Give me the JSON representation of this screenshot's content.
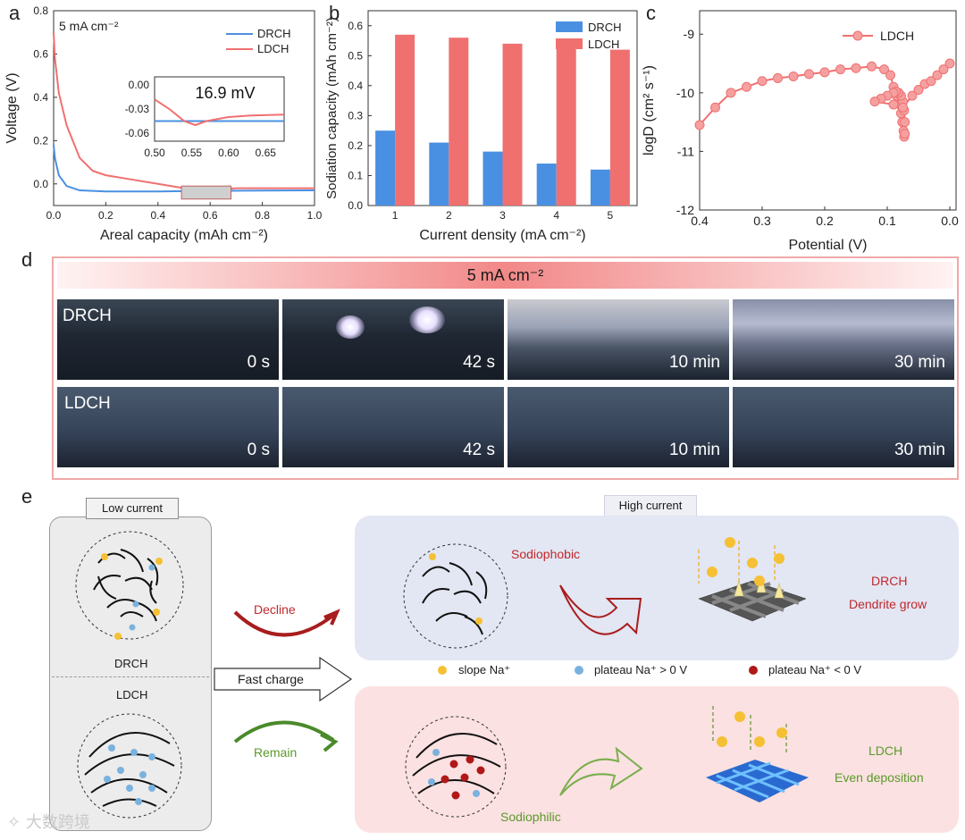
{
  "panels": {
    "a": "a",
    "b": "b",
    "c": "c",
    "d": "d",
    "e": "e"
  },
  "colors": {
    "drch": "#4a90e2",
    "ldch": "#f07070",
    "red_text": "#c0282b",
    "green_text": "#5a9a2a"
  },
  "chart_data": [
    {
      "type": "line",
      "panel": "a",
      "annotation": "5 mA cm⁻²",
      "xlabel": "Areal capacity (mAh cm⁻²)",
      "ylabel": "Voltage (V)",
      "xlim": [
        0,
        1.0
      ],
      "ylim": [
        -0.1,
        0.8
      ],
      "xticks": [
        "0.0",
        "0.2",
        "0.4",
        "0.6",
        "0.8",
        "1.0"
      ],
      "yticks": [
        "0.0",
        "0.2",
        "0.4",
        "0.6",
        "0.8"
      ],
      "legend": "top-right",
      "series": [
        {
          "name": "DRCH",
          "x": [
            0,
            0.005,
            0.02,
            0.05,
            0.1,
            0.2,
            0.4,
            0.6,
            0.8,
            1.0
          ],
          "y": [
            0.18,
            0.12,
            0.04,
            -0.01,
            -0.03,
            -0.035,
            -0.035,
            -0.032,
            -0.031,
            -0.03
          ]
        },
        {
          "name": "LDCH",
          "x": [
            0,
            0.005,
            0.02,
            0.05,
            0.1,
            0.15,
            0.2,
            0.3,
            0.4,
            0.5,
            0.55,
            0.6,
            0.7,
            0.8,
            1.0
          ],
          "y": [
            0.7,
            0.58,
            0.42,
            0.27,
            0.12,
            0.06,
            0.04,
            0.02,
            0.0,
            -0.02,
            -0.045,
            -0.03,
            -0.02,
            -0.02,
            -0.02
          ]
        }
      ],
      "inset": {
        "label": "16.9 mV",
        "xlim": [
          0.5,
          0.675
        ],
        "ylim": [
          -0.07,
          0.01
        ],
        "xticks": [
          "0.50",
          "0.55",
          "0.60",
          "0.65"
        ],
        "yticks": [
          "0.00",
          "-0.03",
          "-0.06"
        ],
        "series": [
          {
            "name": "DRCH",
            "x": [
              0.5,
              0.55,
              0.6,
              0.675
            ],
            "y": [
              -0.045,
              -0.045,
              -0.045,
              -0.045
            ]
          },
          {
            "name": "LDCH",
            "x": [
              0.5,
              0.52,
              0.54,
              0.555,
              0.57,
              0.6,
              0.63,
              0.675
            ],
            "y": [
              -0.018,
              -0.03,
              -0.045,
              -0.05,
              -0.045,
              -0.04,
              -0.038,
              -0.037
            ]
          }
        ]
      }
    },
    {
      "type": "bar",
      "panel": "b",
      "xlabel": "Current density (mA cm⁻²)",
      "ylabel": "Sodiation capacity (mAh cm⁻²)",
      "categories": [
        "1",
        "2",
        "3",
        "4",
        "5"
      ],
      "ylim": [
        0,
        0.65
      ],
      "yticks": [
        "0.0",
        "0.1",
        "0.2",
        "0.3",
        "0.4",
        "0.5",
        "0.6"
      ],
      "legend": "top-right",
      "series": [
        {
          "name": "DRCH",
          "values": [
            0.25,
            0.21,
            0.18,
            0.14,
            0.12
          ]
        },
        {
          "name": "LDCH",
          "values": [
            0.57,
            0.56,
            0.54,
            0.53,
            0.52
          ]
        }
      ]
    },
    {
      "type": "line",
      "panel": "c",
      "xlabel": "Potential (V)",
      "ylabel": "logD (cm² s⁻¹)",
      "xlim": [
        0.4,
        -0.01
      ],
      "ylim": [
        -12,
        -8.6
      ],
      "xticks": [
        "0.4",
        "0.3",
        "0.2",
        "0.1",
        "0.0"
      ],
      "yticks": [
        "-9",
        "-10",
        "-11",
        "-12"
      ],
      "legend": "top-right",
      "series": [
        {
          "name": "LDCH",
          "x": [
            0.4,
            0.375,
            0.35,
            0.325,
            0.3,
            0.275,
            0.25,
            0.225,
            0.2,
            0.175,
            0.15,
            0.125,
            0.105,
            0.095,
            0.09,
            0.085,
            0.08,
            0.078,
            0.076,
            0.074,
            0.073,
            0.072,
            0.072,
            0.073,
            0.075,
            0.078,
            0.082,
            0.086,
            0.09,
            0.1,
            0.11,
            0.12,
            0.09,
            0.075,
            0.06,
            0.05,
            0.04,
            0.03,
            0.02,
            0.01,
            0.0
          ],
          "y": [
            -10.55,
            -10.25,
            -10.0,
            -9.9,
            -9.8,
            -9.75,
            -9.72,
            -9.68,
            -9.65,
            -9.6,
            -9.58,
            -9.55,
            -9.6,
            -9.7,
            -9.9,
            -10.05,
            -10.2,
            -10.35,
            -10.5,
            -10.65,
            -10.75,
            -10.7,
            -10.5,
            -10.3,
            -10.15,
            -10.05,
            -10.0,
            -9.98,
            -10.0,
            -10.05,
            -10.1,
            -10.15,
            -10.2,
            -10.25,
            -10.05,
            -9.95,
            -9.85,
            -9.8,
            -9.7,
            -9.6,
            -9.5
          ]
        }
      ]
    }
  ],
  "panel_d": {
    "header": "5 mA cm⁻²",
    "rows": [
      {
        "label": "DRCH",
        "times": [
          "0  s",
          "42 s",
          "10 min",
          "30 min"
        ]
      },
      {
        "label": "LDCH",
        "times": [
          "0  s",
          "42 s",
          "10 min",
          "30 min"
        ]
      }
    ]
  },
  "panel_e": {
    "low_current": "Low current",
    "high_current": "High current",
    "drch": "DRCH",
    "ldch": "LDCH",
    "decline": "Decline",
    "remain": "Remain",
    "fast_charge": "Fast charge",
    "sodiophobic": "Sodiophobic",
    "sodiophilic": "Sodiophilic",
    "drch_right": "DRCH",
    "dendrite_grow": "Dendrite grow",
    "ldch_right": "LDCH",
    "even_deposition": "Even deposition",
    "legend": [
      "slope Na⁺",
      "plateau Na⁺ > 0 V",
      "plateau Na⁺ < 0 V"
    ]
  },
  "watermark": "大数跨境"
}
